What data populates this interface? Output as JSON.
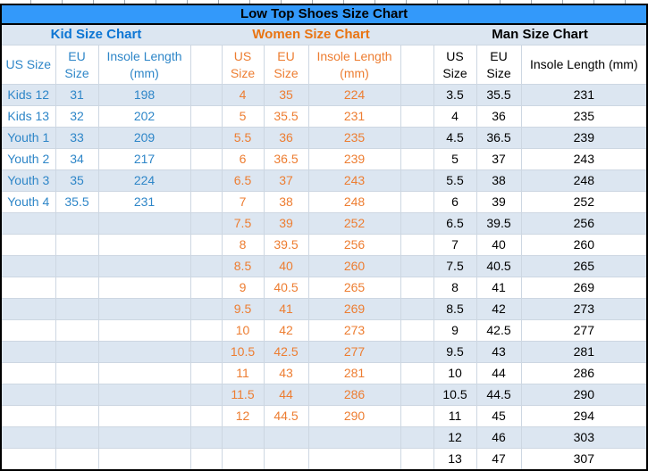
{
  "title": "Low Top Shoes Size Chart",
  "chart_data": [
    {
      "type": "table",
      "title": "Kid Size Chart",
      "columns": [
        "US Size",
        "EU Size",
        "Insole Length (mm)"
      ],
      "rows": [
        [
          "Kids 12",
          "31",
          "198"
        ],
        [
          "Kids 13",
          "32",
          "202"
        ],
        [
          "Youth 1",
          "33",
          "209"
        ],
        [
          "Youth 2",
          "34",
          "217"
        ],
        [
          "Youth 3",
          "35",
          "224"
        ],
        [
          "Youth 4",
          "35.5",
          "231"
        ]
      ]
    },
    {
      "type": "table",
      "title": "Women Size Chart",
      "columns": [
        "US Size",
        "EU Size",
        "Insole Length (mm)"
      ],
      "rows": [
        [
          "4",
          "35",
          "224"
        ],
        [
          "5",
          "35.5",
          "231"
        ],
        [
          "5.5",
          "36",
          "235"
        ],
        [
          "6",
          "36.5",
          "239"
        ],
        [
          "6.5",
          "37",
          "243"
        ],
        [
          "7",
          "38",
          "248"
        ],
        [
          "7.5",
          "39",
          "252"
        ],
        [
          "8",
          "39.5",
          "256"
        ],
        [
          "8.5",
          "40",
          "260"
        ],
        [
          "9",
          "40.5",
          "265"
        ],
        [
          "9.5",
          "41",
          "269"
        ],
        [
          "10",
          "42",
          "273"
        ],
        [
          "10.5",
          "42.5",
          "277"
        ],
        [
          "11",
          "43",
          "281"
        ],
        [
          "11.5",
          "44",
          "286"
        ],
        [
          "12",
          "44.5",
          "290"
        ]
      ]
    },
    {
      "type": "table",
      "title": "Man Size Chart",
      "columns": [
        "US Size",
        "EU Size",
        "Insole Length (mm)"
      ],
      "rows": [
        [
          "3.5",
          "35.5",
          "231"
        ],
        [
          "4",
          "36",
          "235"
        ],
        [
          "4.5",
          "36.5",
          "239"
        ],
        [
          "5",
          "37",
          "243"
        ],
        [
          "5.5",
          "38",
          "248"
        ],
        [
          "6",
          "39",
          "252"
        ],
        [
          "6.5",
          "39.5",
          "256"
        ],
        [
          "7",
          "40",
          "260"
        ],
        [
          "7.5",
          "40.5",
          "265"
        ],
        [
          "8",
          "41",
          "269"
        ],
        [
          "8.5",
          "42",
          "273"
        ],
        [
          "9",
          "42.5",
          "277"
        ],
        [
          "9.5",
          "43",
          "281"
        ],
        [
          "10",
          "44",
          "286"
        ],
        [
          "10.5",
          "44.5",
          "290"
        ],
        [
          "11",
          "45",
          "294"
        ],
        [
          "12",
          "46",
          "303"
        ],
        [
          "13",
          "47",
          "307"
        ]
      ]
    }
  ],
  "colors": {
    "title-bar-bg": "#3399FA",
    "band-bg": "#DCE6F1",
    "kid-data": "#2E86C8",
    "kid-title": "#0D76D4",
    "women-data": "#ED7D31",
    "women-title": "#E97412",
    "man-data": "#000000",
    "grid-line": "#CDD7E2",
    "outer-border": "#000000",
    "tick": "#9FA6AD"
  }
}
